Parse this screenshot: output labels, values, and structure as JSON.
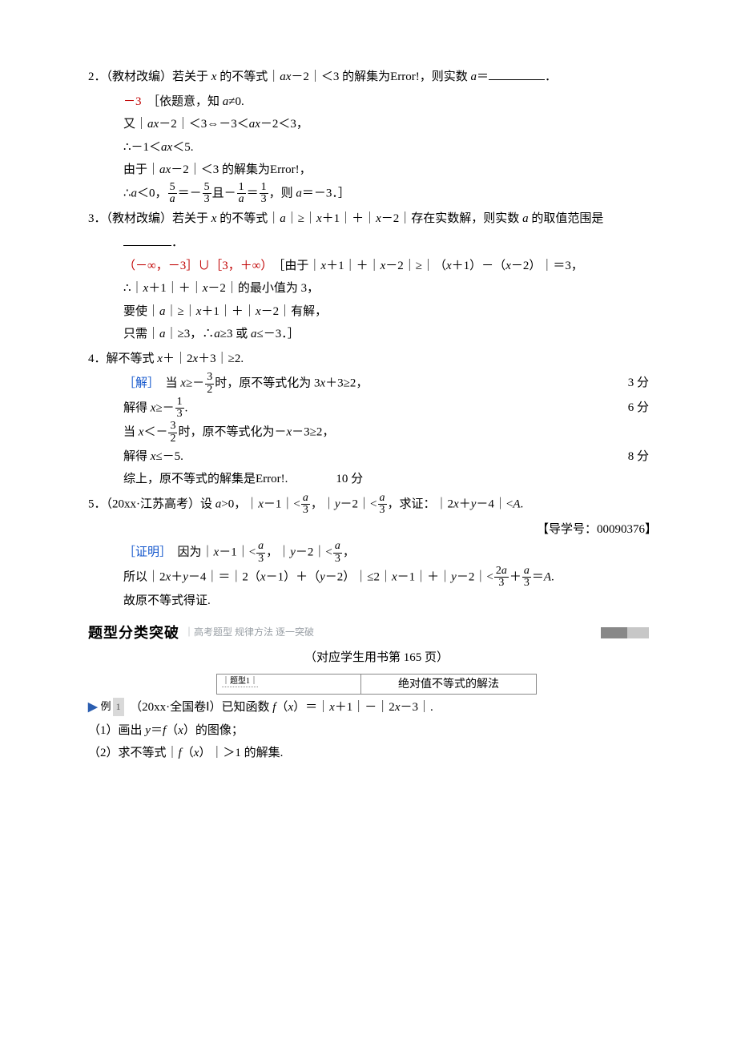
{
  "p2": {
    "head": "2．（教材改编）若关于 <span class=\"fn\">x</span> 的不等式｜<span class=\"fn\">ax</span>－2｜＜3 的解集为Error!，则实数 <span class=\"fn\">a</span>＝",
    "ans": "－3",
    "lines": [
      "［依题意，知 <span class=\"fn\">a</span>≠0.",
      "又｜<span class=\"fn\">ax</span>－2｜＜3⇔－3＜<span class=\"fn\">ax</span>－2＜3，",
      "∴－1＜<span class=\"fn\">ax</span>＜5.",
      "由于｜<span class=\"fn\">ax</span>－2｜＜3 的解集为Error!，",
      "∴<span class=\"fn\">a</span>＜0，<span class=\"frac\"><span class=\"num\">5</span><span class=\"den\"><span class=\"fn\">a</span></span></span>＝－<span class=\"frac\"><span class=\"num\">5</span><span class=\"den\">3</span></span>且－<span class=\"frac\"><span class=\"num\">1</span><span class=\"den\"><span class=\"fn\">a</span></span></span>＝<span class=\"frac\"><span class=\"num\">1</span><span class=\"den\">3</span></span>，则 <span class=\"fn\">a</span>＝－3．］"
    ]
  },
  "p3": {
    "head": "3．（教材改编）若关于 <span class=\"fn\">x</span> 的不等式｜<span class=\"fn\">a</span>｜≥｜<span class=\"fn\">x</span>＋1｜＋｜<span class=\"fn\">x</span>－2｜存在实数解，则实数 <span class=\"fn\">a</span> 的取值范围是",
    "ans": "（－∞，－3］∪［3，＋∞）",
    "lines": [
      "［由于｜<span class=\"fn\">x</span>＋1｜＋｜<span class=\"fn\">x</span>－2｜≥｜（<span class=\"fn\">x</span>＋1）－（<span class=\"fn\">x</span>－2）｜＝3，",
      "∴｜<span class=\"fn\">x</span>＋1｜＋｜<span class=\"fn\">x</span>－2｜的最小值为 3，",
      "要使｜<span class=\"fn\">a</span>｜≥｜<span class=\"fn\">x</span>＋1｜＋｜<span class=\"fn\">x</span>－2｜有解，",
      "只需｜<span class=\"fn\">a</span>｜≥3，∴<span class=\"fn\">a</span>≥3 或 <span class=\"fn\">a</span>≤－3．］"
    ]
  },
  "p4": {
    "head": "4．解不等式 <span class=\"fn\">x</span>＋｜2<span class=\"fn\">x</span>＋3｜≥2.",
    "sol_label": "［解］",
    "lines": [
      {
        "text": "当 <span class=\"fn\">x</span>≥－<span class=\"frac\"><span class=\"num\">3</span><span class=\"den\">2</span></span>时，原不等式化为 3<span class=\"fn\">x</span>＋3≥2，",
        "mark": "3 分"
      },
      {
        "text": "解得 <span class=\"fn\">x</span>≥－<span class=\"frac\"><span class=\"num\">1</span><span class=\"den\">3</span></span>.",
        "mark": "6 分"
      },
      {
        "text": "当 <span class=\"fn\">x</span>＜－<span class=\"frac\"><span class=\"num\">3</span><span class=\"den\">2</span></span>时，原不等式化为－<span class=\"fn\">x</span>－3≥2，",
        "mark": ""
      },
      {
        "text": "解得 <span class=\"fn\">x</span>≤－5.",
        "mark": "8 分"
      },
      {
        "text": "综上，原不等式的解集是Error!.　　　　10 分",
        "mark": ""
      }
    ]
  },
  "p5": {
    "head": "5．（20xx·江苏高考）设 <span class=\"fn\">a</span>&gt;0，｜<span class=\"fn\">x</span>－1｜&lt;<span class=\"frac\"><span class=\"num\"><span class=\"fn\">a</span></span><span class=\"den\">3</span></span>，｜<span class=\"fn\">y</span>－2｜&lt;<span class=\"frac\"><span class=\"num\"><span class=\"fn\">a</span></span><span class=\"den\">3</span></span>，求证：｜2<span class=\"fn\">x</span>＋<span class=\"fn\">y</span>－4｜&lt;<span class=\"fn\">A</span>.",
    "guide": "【导学号：00090376】",
    "proof_label": "［证明］",
    "lines": [
      "因为｜<span class=\"fn\">x</span>－1｜&lt;<span class=\"frac\"><span class=\"num\"><span class=\"fn\">a</span></span><span class=\"den\">3</span></span>，｜<span class=\"fn\">y</span>－2｜&lt;<span class=\"frac\"><span class=\"num\"><span class=\"fn\">a</span></span><span class=\"den\">3</span></span>，",
      "所以｜2<span class=\"fn\">x</span>＋<span class=\"fn\">y</span>－4｜＝｜2（<span class=\"fn\">x</span>－1）＋（<span class=\"fn\">y</span>－2）｜≤2｜<span class=\"fn\">x</span>－1｜＋｜<span class=\"fn\">y</span>－2｜&lt;<span class=\"frac\"><span class=\"num\">2<span class=\"fn\">a</span></span><span class=\"den\">3</span></span>＋<span class=\"frac\"><span class=\"num\"><span class=\"fn\">a</span></span><span class=\"den\">3</span></span>＝<span class=\"fn\">A</span>.",
      "故原不等式得证."
    ]
  },
  "section": {
    "title": "题型分类突破",
    "sub": "｜高考题型  规律方法  逐一突破",
    "page_note": "（对应学生用书第 165 页）",
    "topic_tag": "｜题型1｜",
    "topic_name": "绝对值不等式的解法"
  },
  "example": {
    "arrow": "▶",
    "label": "例",
    "num": "1",
    "text": "（20xx·全国卷Ⅰ）已知函数 <span class=\"fn\">f</span>（<span class=\"fn\">x</span>）＝｜<span class=\"fn\">x</span>＋1｜－｜2<span class=\"fn\">x</span>－3｜.",
    "q1": "（1）画出 <span class=\"fn\">y</span>＝<span class=\"fn\">f</span>（<span class=\"fn\">x</span>）的图像；",
    "q2": "（2）求不等式｜<span class=\"fn\">f</span>（<span class=\"fn\">x</span>）｜＞1 的解集."
  }
}
